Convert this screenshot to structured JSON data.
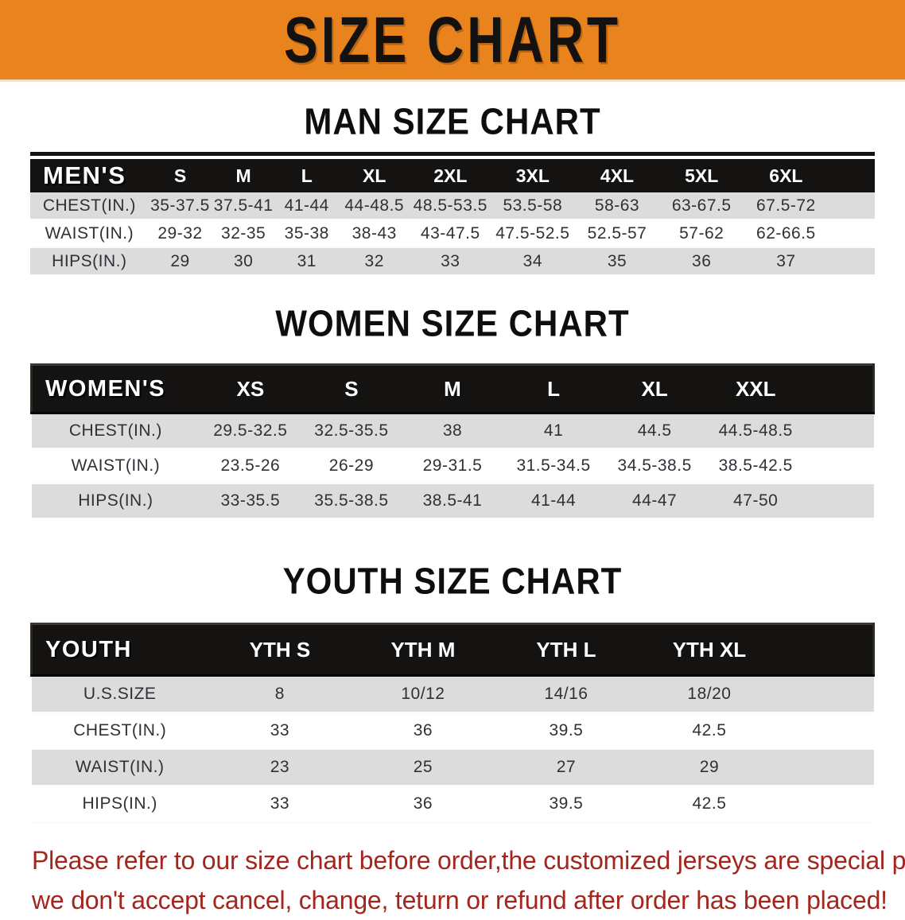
{
  "banner": {
    "title": "SIZE CHART"
  },
  "colors": {
    "banner_orange": "#E8831E",
    "header_band_black": "#141312",
    "row_gray": "#DCDCDC",
    "note_red": "#A3261E"
  },
  "sections": [
    {
      "heading": "MAN SIZE CHART",
      "table": {
        "label": "MEN'S",
        "columns": [
          "S",
          "M",
          "L",
          "XL",
          "2XL",
          "3XL",
          "4XL",
          "5XL",
          "6XL"
        ],
        "rows": [
          {
            "label": "CHEST(IN.)",
            "values": [
              "35-37.5",
              "37.5-41",
              "41-44",
              "44-48.5",
              "48.5-53.5",
              "53.5-58",
              "58-63",
              "63-67.5",
              "67.5-72"
            ]
          },
          {
            "label": "WAIST(IN.)",
            "values": [
              "29-32",
              "32-35",
              "35-38",
              "38-43",
              "43-47.5",
              "47.5-52.5",
              "52.5-57",
              "57-62",
              "62-66.5"
            ]
          },
          {
            "label": "HIPS(IN.)",
            "values": [
              "29",
              "30",
              "31",
              "32",
              "33",
              "34",
              "35",
              "36",
              "37"
            ]
          }
        ]
      }
    },
    {
      "heading": "WOMEN SIZE CHART",
      "table": {
        "label": "WOMEN'S",
        "columns": [
          "XS",
          "S",
          "M",
          "L",
          "XL",
          "XXL"
        ],
        "rows": [
          {
            "label": "CHEST(IN.)",
            "values": [
              "29.5-32.5",
              "32.5-35.5",
              "38",
              "41",
              "44.5",
              "44.5-48.5"
            ]
          },
          {
            "label": "WAIST(IN.)",
            "values": [
              "23.5-26",
              "26-29",
              "29-31.5",
              "31.5-34.5",
              "34.5-38.5",
              "38.5-42.5"
            ]
          },
          {
            "label": "HIPS(IN.)",
            "values": [
              "33-35.5",
              "35.5-38.5",
              "38.5-41",
              "41-44",
              "44-47",
              "47-50"
            ]
          }
        ]
      }
    },
    {
      "heading": "YOUTH SIZE CHART",
      "table": {
        "label": "YOUTH",
        "columns": [
          "YTH S",
          "YTH M",
          "YTH L",
          "YTH XL"
        ],
        "rows": [
          {
            "label": "U.S.SIZE",
            "values": [
              "8",
              "10/12",
              "14/16",
              "18/20"
            ]
          },
          {
            "label": "CHEST(IN.)",
            "values": [
              "33",
              "36",
              "39.5",
              "42.5"
            ]
          },
          {
            "label": "WAIST(IN.)",
            "values": [
              "23",
              "25",
              "27",
              "29"
            ]
          },
          {
            "label": "HIPS(IN.)",
            "values": [
              "33",
              "36",
              "39.5",
              "42.5"
            ]
          }
        ]
      }
    }
  ],
  "footer": {
    "lines": [
      "Please refer to our size chart before order,the customized jerseys are special products,",
      "we don't accept cancel, change, teturn or refund after order has been placed!"
    ]
  }
}
